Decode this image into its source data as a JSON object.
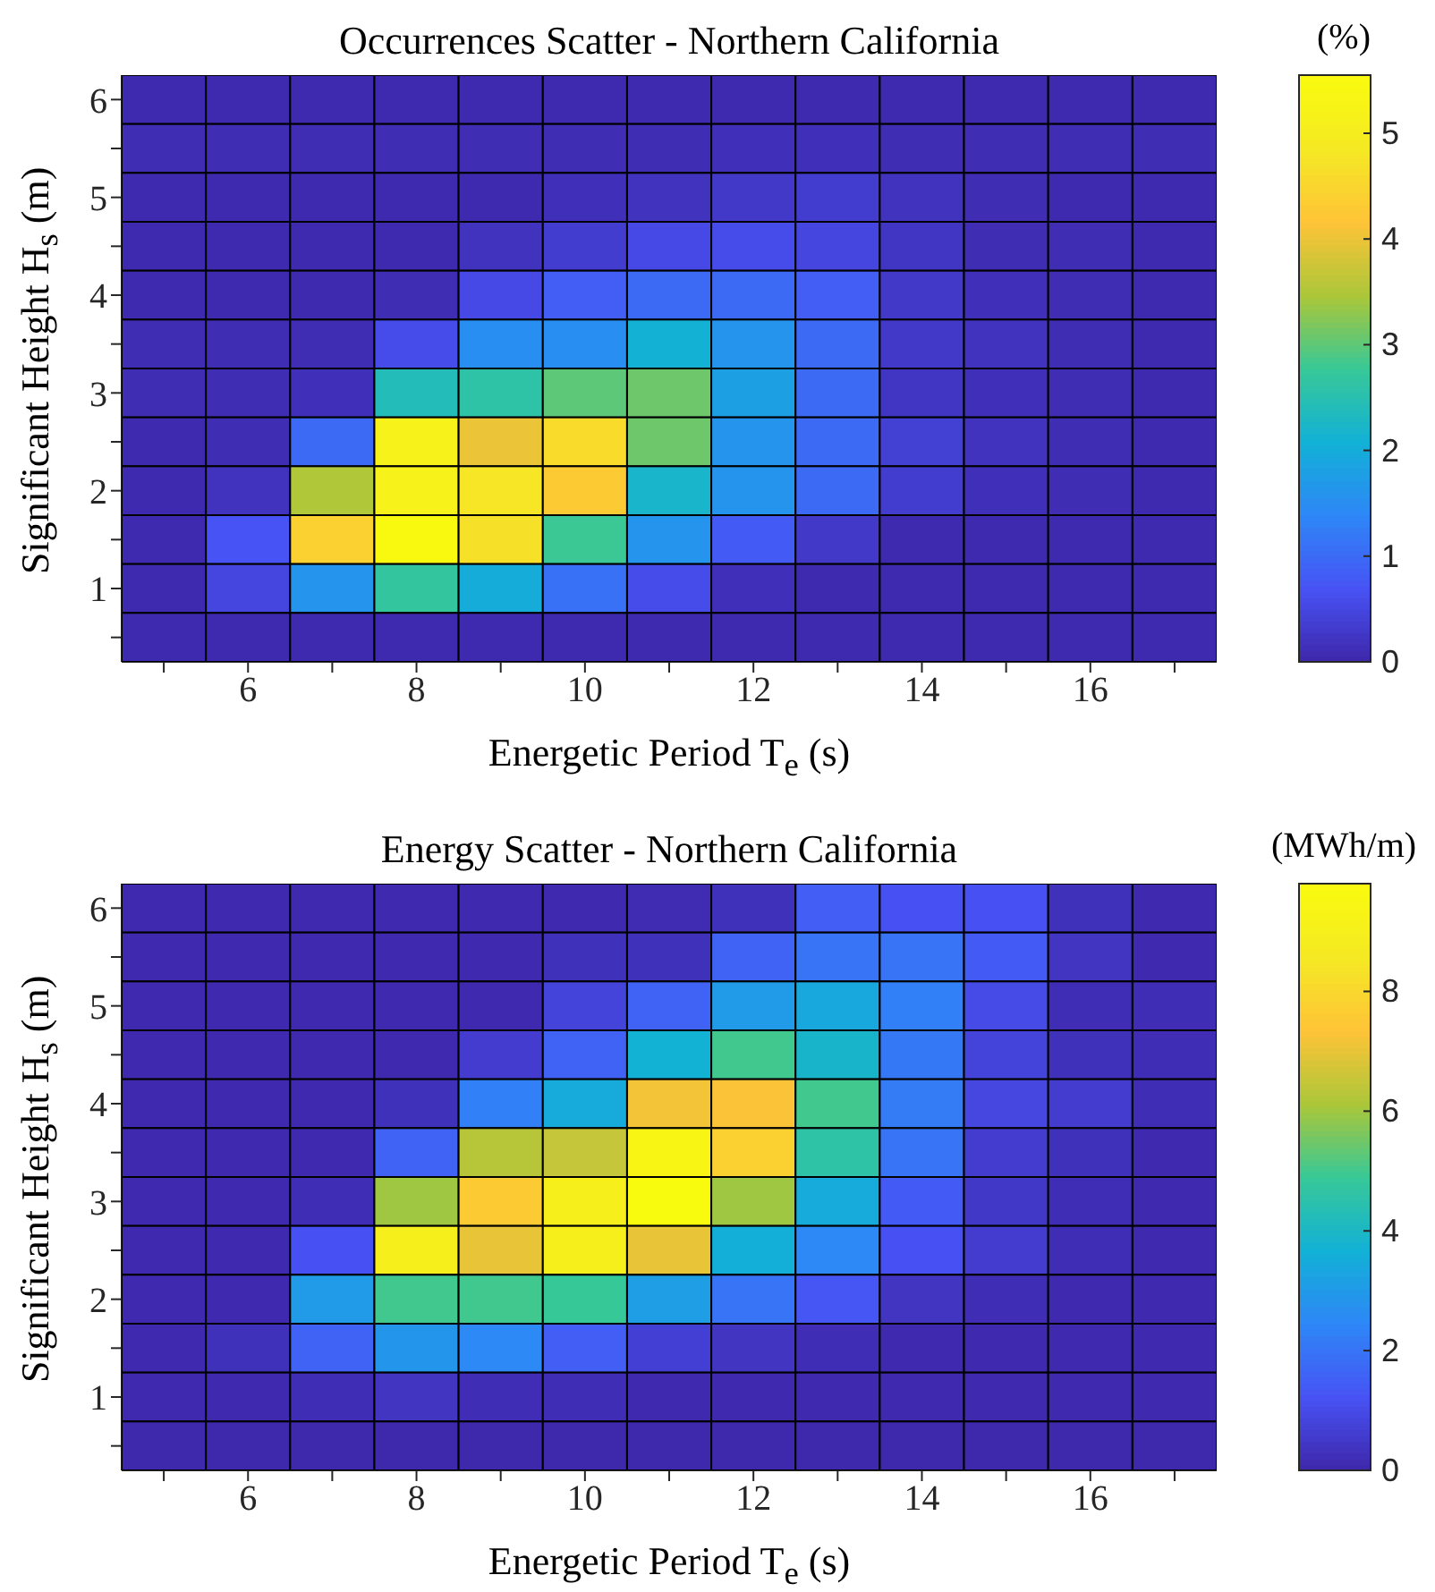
{
  "chart_data": [
    {
      "type": "heatmap",
      "title": "Occurrences Scatter - Northern California",
      "xlabel": "Energetic Period T$_{e}$ (s)",
      "ylabel": "Significant Height H$_{s}$ (m)",
      "clabel": "(%)",
      "categories": [
        null,
        "6",
        null,
        "8",
        null,
        "10",
        null,
        "12",
        null,
        "14",
        null,
        "16",
        null
      ],
      "y_categories": [
        "6",
        null,
        "5",
        null,
        "4",
        null,
        "3",
        null,
        "2",
        null,
        "1",
        null
      ],
      "cells": [
        [
          0.05,
          0.05,
          0.05,
          0.05,
          0.05,
          0.05,
          0.05,
          0.05,
          0.05,
          0.05,
          0.05,
          0.05,
          0.05
        ],
        [
          0.1,
          0.1,
          0.1,
          0.1,
          0.1,
          0.1,
          0.1,
          0.15,
          0.15,
          0.1,
          0.1,
          0.1,
          0.1
        ],
        [
          0.05,
          0.05,
          0.05,
          0.05,
          0.05,
          0.15,
          0.2,
          0.3,
          0.35,
          0.2,
          0.1,
          0.05,
          0.05
        ],
        [
          0.05,
          0.05,
          0.05,
          0.05,
          0.2,
          0.35,
          0.55,
          0.6,
          0.5,
          0.25,
          0.1,
          0.1,
          0.05
        ],
        [
          0.05,
          0.05,
          0.05,
          0.1,
          0.55,
          0.85,
          1.0,
          1.0,
          0.85,
          0.3,
          0.15,
          0.1,
          0.05
        ],
        [
          0.1,
          0.1,
          0.1,
          0.6,
          1.5,
          1.5,
          2.1,
          1.6,
          1.0,
          0.3,
          0.2,
          0.1,
          0.05
        ],
        [
          0.1,
          0.1,
          0.15,
          2.4,
          2.6,
          3.0,
          3.1,
          1.8,
          1.0,
          0.25,
          0.15,
          0.1,
          0.05
        ],
        [
          0.05,
          0.1,
          1.0,
          5.2,
          4.0,
          4.6,
          3.1,
          1.6,
          1.0,
          0.4,
          0.2,
          0.1,
          0.05
        ],
        [
          0.05,
          0.2,
          3.5,
          5.2,
          4.8,
          4.3,
          2.2,
          1.6,
          1.0,
          0.35,
          0.15,
          0.1,
          0.05
        ],
        [
          0.05,
          0.7,
          4.4,
          5.5,
          4.7,
          2.8,
          1.6,
          0.8,
          0.3,
          0.05,
          0.05,
          0.05,
          0.05
        ],
        [
          0.05,
          0.5,
          1.6,
          2.7,
          2.0,
          1.1,
          0.6,
          0.15,
          0.05,
          0.05,
          0.05,
          0.05,
          0.05
        ],
        [
          0.05,
          0.05,
          0.05,
          0.05,
          0.05,
          0.05,
          0.05,
          0.05,
          0.05,
          0.05,
          0.05,
          0.05,
          0.05
        ]
      ],
      "clim": [
        0,
        5.55
      ],
      "cticks": [
        0,
        1,
        2,
        3,
        4,
        5
      ]
    },
    {
      "type": "heatmap",
      "title": "Energy Scatter - Northern California",
      "xlabel": "Energetic Period T$_{e}$ (s)",
      "ylabel": "Significant Height H$_{s}$ (m)",
      "clabel": "(MWh/m)",
      "categories": [
        null,
        "6",
        null,
        "8",
        null,
        "10",
        null,
        "12",
        null,
        "14",
        null,
        "16",
        null
      ],
      "y_categories": [
        "6",
        null,
        "5",
        null,
        "4",
        null,
        "3",
        null,
        "2",
        null,
        "1",
        null
      ],
      "cells": [
        [
          0.1,
          0.1,
          0.1,
          0.1,
          0.1,
          0.1,
          0.15,
          0.3,
          1.5,
          1.2,
          1.2,
          0.3,
          0.1
        ],
        [
          0.1,
          0.1,
          0.1,
          0.1,
          0.1,
          0.3,
          0.3,
          1.6,
          2.0,
          2.0,
          1.4,
          0.4,
          0.1
        ],
        [
          0.1,
          0.1,
          0.1,
          0.1,
          0.1,
          0.8,
          1.6,
          3.0,
          3.4,
          2.3,
          1.0,
          0.2,
          0.2
        ],
        [
          0.1,
          0.1,
          0.1,
          0.1,
          0.6,
          1.6,
          3.7,
          5.0,
          3.9,
          2.1,
          0.8,
          0.3,
          0.2
        ],
        [
          0.1,
          0.1,
          0.1,
          0.3,
          2.3,
          3.5,
          7.2,
          7.3,
          5.0,
          2.2,
          0.9,
          0.6,
          0.2
        ],
        [
          0.1,
          0.1,
          0.1,
          1.6,
          6.3,
          6.5,
          9.4,
          7.8,
          4.6,
          2.0,
          0.6,
          0.3,
          0.1
        ],
        [
          0.1,
          0.1,
          0.2,
          6.0,
          7.6,
          9.0,
          9.8,
          6.0,
          3.5,
          1.4,
          0.5,
          0.2,
          0.1
        ],
        [
          0.1,
          0.1,
          1.2,
          9.0,
          7.0,
          9.0,
          7.0,
          3.6,
          2.5,
          1.2,
          0.6,
          0.2,
          0.1
        ],
        [
          0.1,
          0.1,
          3.0,
          5.0,
          5.0,
          4.9,
          3.1,
          2.0,
          1.3,
          0.4,
          0.2,
          0.1,
          0.1
        ],
        [
          0.1,
          0.3,
          1.6,
          2.9,
          2.5,
          1.5,
          0.7,
          0.4,
          0.2,
          0.1,
          0.1,
          0.1,
          0.1
        ],
        [
          0.1,
          0.1,
          0.2,
          0.4,
          0.2,
          0.2,
          0.1,
          0.1,
          0.1,
          0.1,
          0.1,
          0.1,
          0.1
        ],
        [
          0.05,
          0.05,
          0.05,
          0.05,
          0.05,
          0.05,
          0.05,
          0.05,
          0.05,
          0.05,
          0.05,
          0.05,
          0.05
        ]
      ],
      "clim": [
        0,
        9.8
      ],
      "cticks": [
        0,
        2,
        4,
        6,
        8
      ]
    }
  ]
}
